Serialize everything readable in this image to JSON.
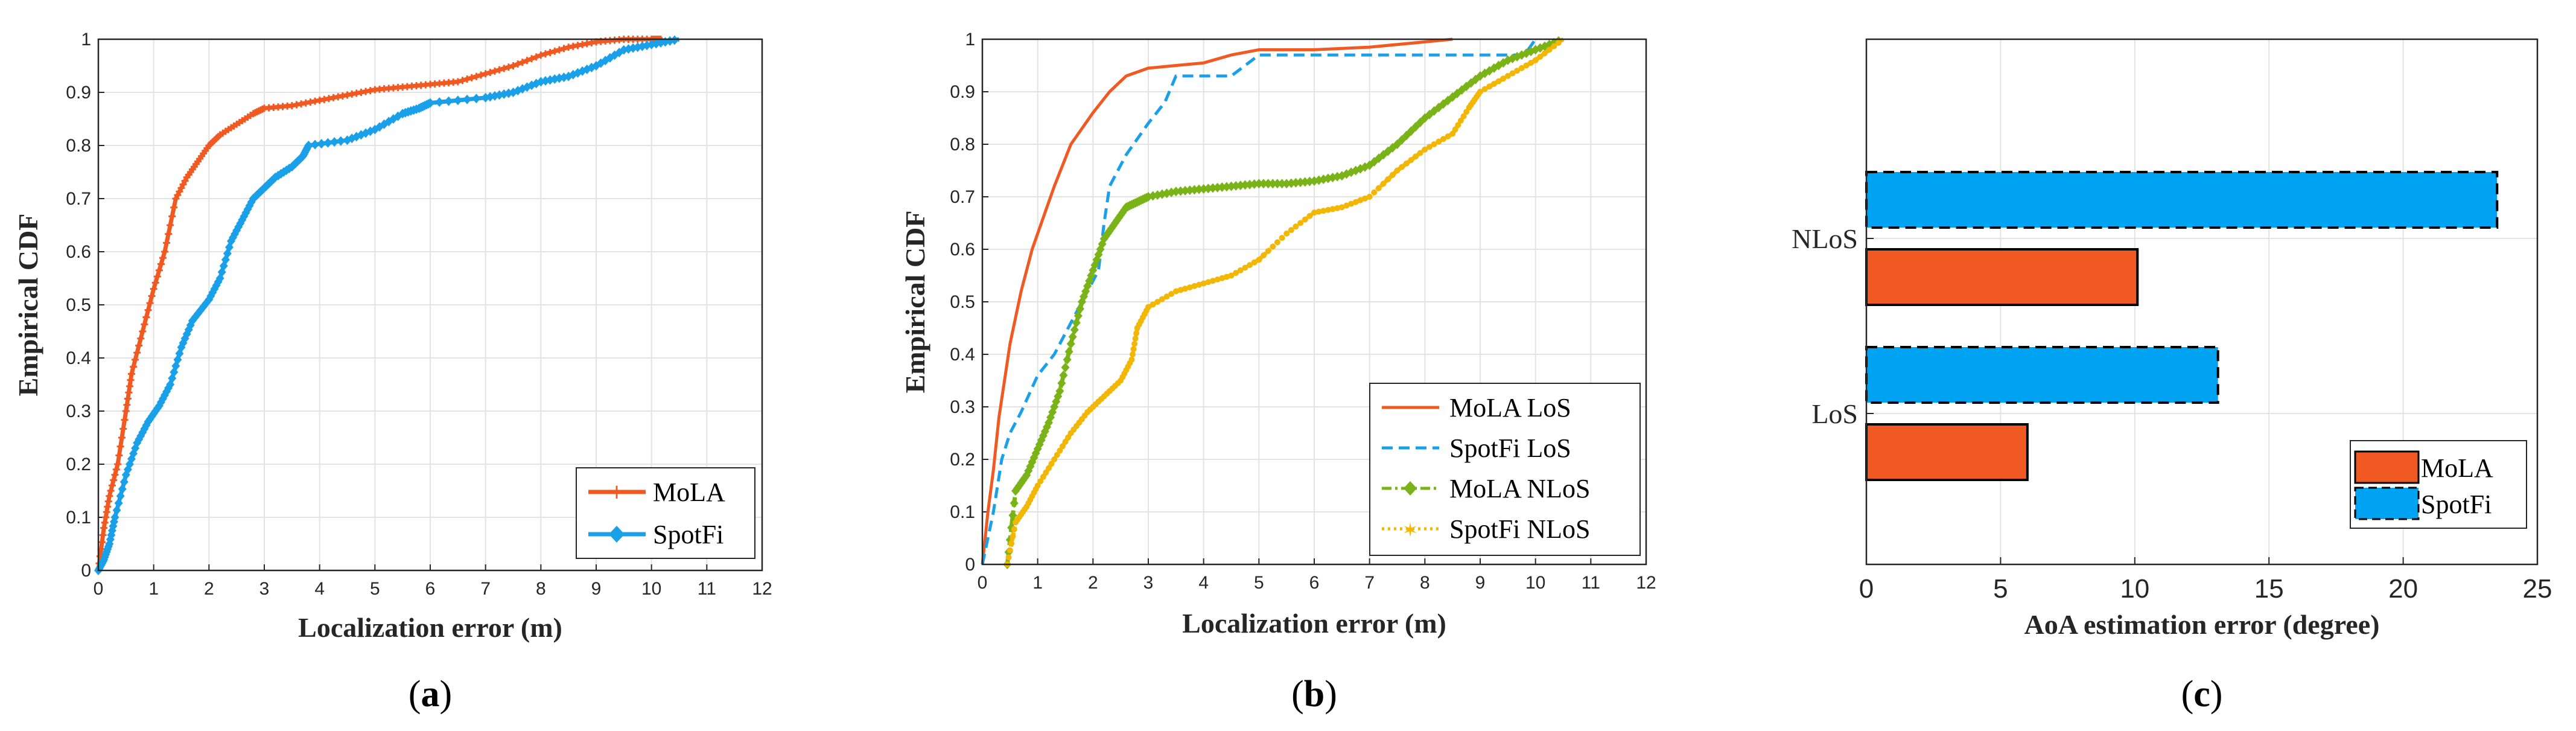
{
  "chart_data": [
    {
      "type": "line",
      "id": "a",
      "caption_prefix": "(",
      "caption_letter": "a",
      "caption_suffix": ")",
      "xlabel": "Localization error (m)",
      "ylabel": "Empirical CDF",
      "xlim": [
        0,
        12
      ],
      "ylim": [
        0,
        1
      ],
      "xticks": [
        "0",
        "1",
        "2",
        "3",
        "4",
        "5",
        "6",
        "7",
        "8",
        "9",
        "10",
        "11",
        "12"
      ],
      "yticks": [
        "0",
        "0.1",
        "0.2",
        "0.3",
        "0.4",
        "0.5",
        "0.6",
        "0.7",
        "0.8",
        "0.9",
        "1"
      ],
      "grid": true,
      "legend_position": "bottom-right",
      "series": [
        {
          "name": "MoLA",
          "color": "#f05a22",
          "marker": "+",
          "x": [
            0,
            0.1,
            0.2,
            0.35,
            0.5,
            0.6,
            0.8,
            1.0,
            1.2,
            1.4,
            1.6,
            1.8,
            2.0,
            2.2,
            2.5,
            2.8,
            3.0,
            3.5,
            4.0,
            4.5,
            5.0,
            5.5,
            6.0,
            6.5,
            7.0,
            7.5,
            8.0,
            8.5,
            9.0,
            9.5,
            10.0,
            10.2
          ],
          "y": [
            0,
            0.08,
            0.14,
            0.2,
            0.3,
            0.37,
            0.45,
            0.53,
            0.6,
            0.7,
            0.74,
            0.77,
            0.8,
            0.82,
            0.84,
            0.86,
            0.87,
            0.875,
            0.885,
            0.895,
            0.905,
            0.91,
            0.915,
            0.92,
            0.935,
            0.95,
            0.97,
            0.985,
            0.995,
            1.0,
            1.0,
            1.0
          ]
        },
        {
          "name": "SpotFi",
          "color": "#1aa0e8",
          "marker": "diamond",
          "x": [
            0,
            0.1,
            0.2,
            0.3,
            0.5,
            0.7,
            0.9,
            1.1,
            1.3,
            1.5,
            1.7,
            2.0,
            2.2,
            2.4,
            2.6,
            2.8,
            3.0,
            3.2,
            3.5,
            3.7,
            3.8,
            4.5,
            5.0,
            5.5,
            5.8,
            6.0,
            7.0,
            7.5,
            8.0,
            8.5,
            9.0,
            9.5,
            10.0,
            10.5
          ],
          "y": [
            0,
            0.02,
            0.05,
            0.1,
            0.18,
            0.24,
            0.28,
            0.31,
            0.35,
            0.42,
            0.47,
            0.51,
            0.55,
            0.62,
            0.66,
            0.7,
            0.72,
            0.74,
            0.76,
            0.78,
            0.8,
            0.81,
            0.83,
            0.86,
            0.87,
            0.88,
            0.89,
            0.9,
            0.92,
            0.93,
            0.95,
            0.98,
            0.99,
            1.0
          ]
        }
      ]
    },
    {
      "type": "line",
      "id": "b",
      "caption_prefix": "(",
      "caption_letter": "b",
      "caption_suffix": ")",
      "xlabel": "Localization error (m)",
      "ylabel": "Empirical CDF",
      "xlim": [
        0,
        12
      ],
      "ylim": [
        0,
        1
      ],
      "xticks": [
        "0",
        "1",
        "2",
        "3",
        "4",
        "5",
        "6",
        "7",
        "8",
        "9",
        "10",
        "11",
        "12"
      ],
      "yticks": [
        "0",
        "0.1",
        "0.2",
        "0.3",
        "0.4",
        "0.5",
        "0.6",
        "0.7",
        "0.8",
        "0.9",
        "1"
      ],
      "grid": true,
      "legend_position": "bottom-right",
      "series": [
        {
          "name": "MoLA LoS",
          "color": "#f05a22",
          "marker": "none",
          "dash": "solid",
          "x": [
            0,
            0.1,
            0.2,
            0.3,
            0.5,
            0.7,
            0.9,
            1.1,
            1.3,
            1.6,
            2.0,
            2.3,
            2.6,
            3.0,
            3.5,
            4.0,
            4.5,
            5.0,
            6.0,
            7.0,
            8.0,
            8.5
          ],
          "y": [
            0,
            0.1,
            0.18,
            0.28,
            0.42,
            0.52,
            0.6,
            0.66,
            0.72,
            0.8,
            0.86,
            0.9,
            0.93,
            0.945,
            0.95,
            0.955,
            0.97,
            0.98,
            0.98,
            0.985,
            0.995,
            1.0
          ]
        },
        {
          "name": "SpotFi LoS",
          "color": "#1aa0e8",
          "marker": "none",
          "dash": "dashed",
          "x": [
            0,
            0.2,
            0.35,
            0.5,
            0.7,
            1.0,
            1.3,
            1.6,
            1.9,
            2.1,
            2.2,
            2.3,
            2.6,
            3.0,
            3.3,
            3.5,
            4.0,
            4.5,
            5.0,
            6.0,
            7.0,
            8.0,
            9.0,
            9.8,
            10.0
          ],
          "y": [
            0,
            0.1,
            0.2,
            0.25,
            0.29,
            0.36,
            0.4,
            0.46,
            0.52,
            0.56,
            0.65,
            0.72,
            0.78,
            0.84,
            0.88,
            0.93,
            0.93,
            0.93,
            0.97,
            0.97,
            0.97,
            0.97,
            0.97,
            0.97,
            1.0
          ]
        },
        {
          "name": "MoLA NLoS",
          "color": "#7ab317",
          "marker": "diamond",
          "dash": "dashdot",
          "x": [
            0.45,
            0.6,
            0.8,
            1.0,
            1.2,
            1.4,
            1.6,
            1.8,
            2.0,
            2.2,
            2.4,
            2.6,
            2.8,
            3.0,
            3.5,
            4.0,
            4.5,
            5.0,
            5.5,
            6.0,
            6.5,
            7.0,
            7.5,
            8.0,
            8.5,
            9.0,
            9.5,
            10.0,
            10.5
          ],
          "y": [
            0,
            0.14,
            0.17,
            0.22,
            0.27,
            0.33,
            0.42,
            0.5,
            0.56,
            0.62,
            0.65,
            0.68,
            0.69,
            0.7,
            0.71,
            0.715,
            0.72,
            0.725,
            0.725,
            0.73,
            0.74,
            0.76,
            0.8,
            0.85,
            0.89,
            0.93,
            0.96,
            0.98,
            1.0
          ]
        },
        {
          "name": "SpotFi NLoS",
          "color": "#f2b705",
          "marker": "star",
          "dash": "dotted",
          "x": [
            0.45,
            0.6,
            0.8,
            1.0,
            1.3,
            1.6,
            1.9,
            2.2,
            2.5,
            2.7,
            2.8,
            3.0,
            3.5,
            4.0,
            4.5,
            5.0,
            5.5,
            6.0,
            6.5,
            7.0,
            7.5,
            8.0,
            8.5,
            8.8,
            9.0,
            9.5,
            10.0,
            10.5
          ],
          "y": [
            0,
            0.08,
            0.11,
            0.15,
            0.2,
            0.25,
            0.29,
            0.32,
            0.35,
            0.39,
            0.45,
            0.49,
            0.52,
            0.535,
            0.55,
            0.58,
            0.63,
            0.67,
            0.68,
            0.7,
            0.75,
            0.79,
            0.82,
            0.87,
            0.9,
            0.93,
            0.96,
            1.0
          ]
        }
      ]
    },
    {
      "type": "bar",
      "orientation": "horizontal",
      "id": "c",
      "caption_prefix": "(",
      "caption_letter": "c",
      "caption_suffix": ")",
      "xlabel": "AoA estimation error (degree)",
      "ylabel": "",
      "xlim": [
        0,
        25
      ],
      "xticks": [
        "0",
        "5",
        "10",
        "15",
        "20",
        "25"
      ],
      "categories": [
        "LoS",
        "NLoS"
      ],
      "grid": true,
      "legend_position": "bottom-right",
      "series": [
        {
          "name": "MoLA",
          "color": "#f05a22",
          "border": "solid",
          "values": [
            6,
            10.1
          ]
        },
        {
          "name": "SpotFi",
          "color": "#00a2f2",
          "border": "dashed",
          "values": [
            13.1,
            23.5
          ]
        }
      ]
    }
  ]
}
